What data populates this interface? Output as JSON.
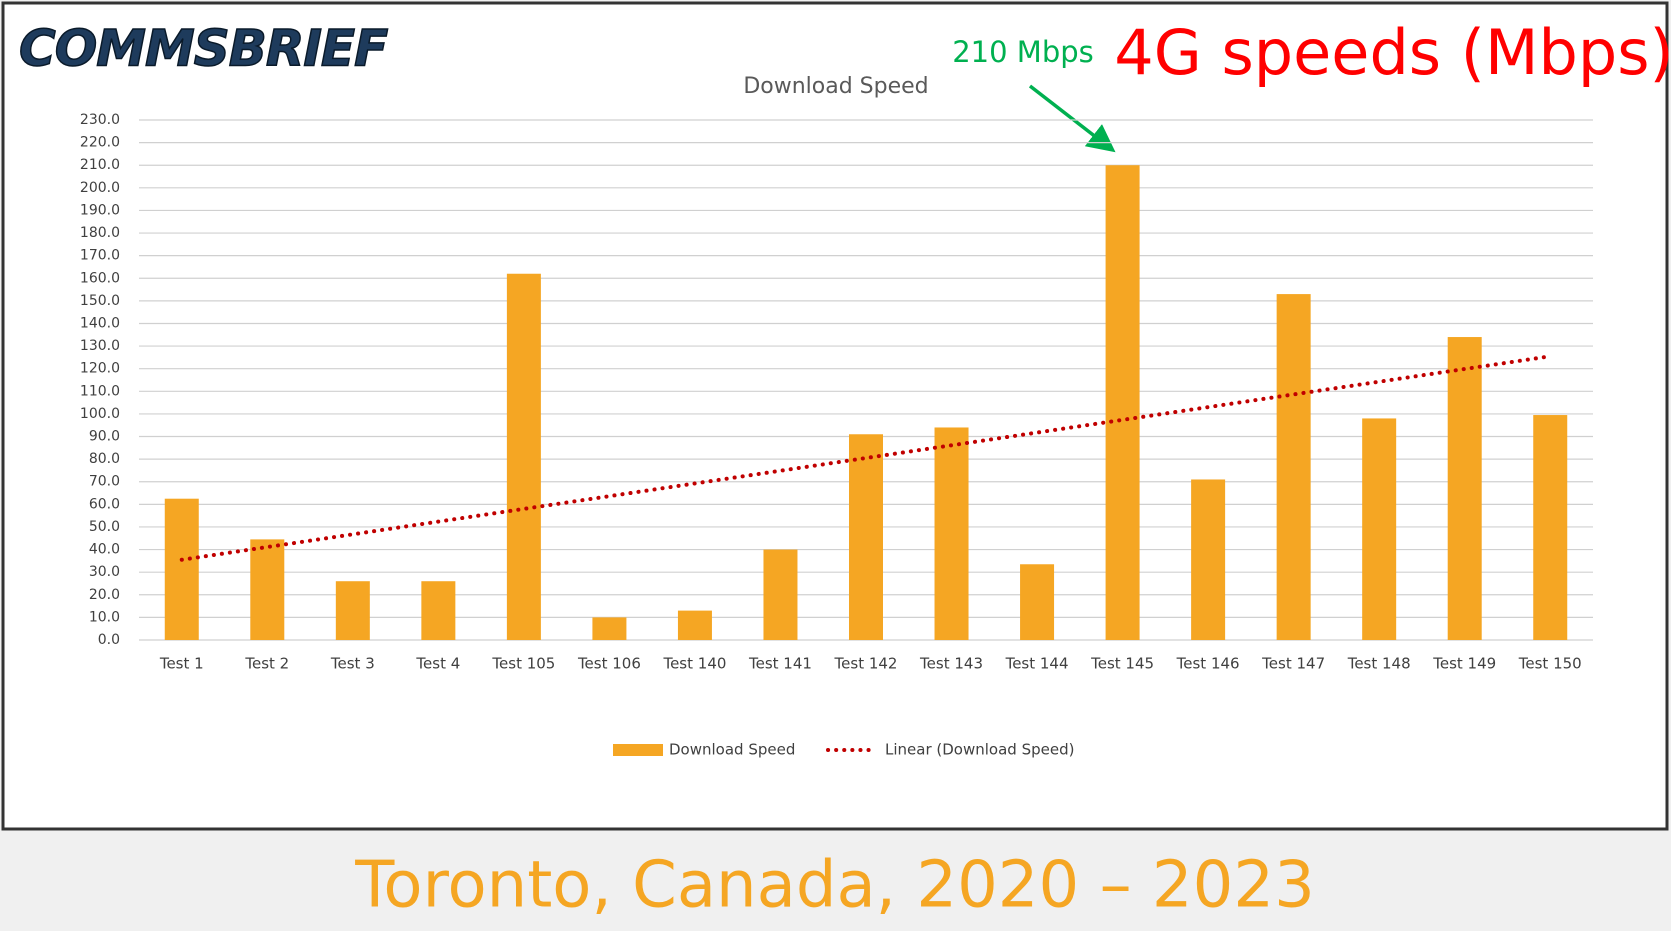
{
  "header": {
    "logo": "COMMSBRIEF",
    "headline": "4G speeds (Mbps)"
  },
  "footer": {
    "caption": "Toronto, Canada, 2020 – 2023"
  },
  "chart_data": {
    "type": "bar",
    "title": "Download Speed",
    "annotation": "210 Mbps",
    "categories": [
      "Test 1",
      "Test 2",
      "Test 3",
      "Test 4",
      "Test 105",
      "Test 106",
      "Test 140",
      "Test 141",
      "Test 142",
      "Test 143",
      "Test 144",
      "Test 145",
      "Test 146",
      "Test 147",
      "Test 148",
      "Test 149",
      "Test 150"
    ],
    "series": [
      {
        "name": "Download Speed",
        "color": "#f5a623",
        "values": [
          62.5,
          44.5,
          26,
          26,
          162,
          10,
          13,
          40,
          91,
          94,
          33.5,
          210,
          71,
          153,
          98,
          134,
          99.5
        ]
      }
    ],
    "trendline": {
      "name": "Linear (Download Speed)",
      "color": "#c00000",
      "values": [
        35.5,
        125.5
      ]
    },
    "ylim": [
      0,
      230
    ],
    "yticks": [
      {
        "value": 0,
        "label": "0.0"
      },
      {
        "value": 10,
        "label": "10.0"
      },
      {
        "value": 20,
        "label": "20.0"
      },
      {
        "value": 30,
        "label": "30.0"
      },
      {
        "value": 40,
        "label": "40.0"
      },
      {
        "value": 50,
        "label": "50.0"
      },
      {
        "value": 60,
        "label": "60.0"
      },
      {
        "value": 70,
        "label": "70.0"
      },
      {
        "value": 80,
        "label": "80.0"
      },
      {
        "value": 90,
        "label": "90.0"
      },
      {
        "value": 100,
        "label": "100.0"
      },
      {
        "value": 110,
        "label": "110.0"
      },
      {
        "value": 120,
        "label": "120.0"
      },
      {
        "value": 130,
        "label": "130.0"
      },
      {
        "value": 140,
        "label": "140.0"
      },
      {
        "value": 150,
        "label": "150.0"
      },
      {
        "value": 160,
        "label": "160.0"
      },
      {
        "value": 170,
        "label": "170.0"
      },
      {
        "value": 180,
        "label": "180.0"
      },
      {
        "value": 190,
        "label": "190.0"
      },
      {
        "value": 200,
        "label": "200.0"
      },
      {
        "value": 210,
        "label": "210.0"
      },
      {
        "value": 220,
        "label": "220.0"
      },
      {
        "value": 230,
        "label": "230.0"
      }
    ],
    "grid": true,
    "legend": "bottom"
  }
}
